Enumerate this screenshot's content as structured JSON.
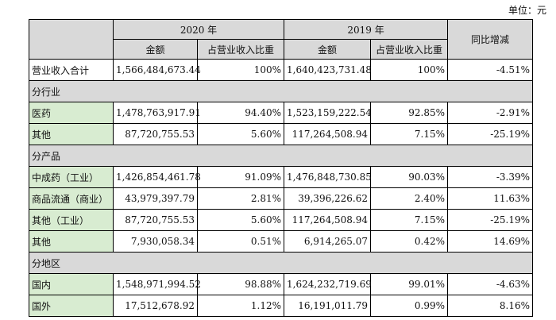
{
  "unit_label": "单位：元",
  "header": {
    "year_2020": "2020 年",
    "year_2019": "2019 年",
    "yoy": "同比增减",
    "amount": "金额",
    "share": "占营业收入比重"
  },
  "total": {
    "label": "营业收入合计",
    "amt2020": "1,566,484,673.44",
    "pct2020": "100%",
    "amt2019": "1,640,423,731.48",
    "pct2019": "100%",
    "yoy": "-4.51%"
  },
  "sections": {
    "industry": "分行业",
    "product": "分产品",
    "region": "分地区"
  },
  "industry_rows": [
    {
      "label": "医药",
      "amt2020": "1,478,763,917.91",
      "pct2020": "94.40%",
      "amt2019": "1,523,159,222.54",
      "pct2019": "92.85%",
      "yoy": "-2.91%"
    },
    {
      "label": "其他",
      "amt2020": "87,720,755.53",
      "pct2020": "5.60%",
      "amt2019": "117,264,508.94",
      "pct2019": "7.15%",
      "yoy": "-25.19%"
    }
  ],
  "product_rows": [
    {
      "label": "中成药（工业）",
      "amt2020": "1,426,854,461.78",
      "pct2020": "91.09%",
      "amt2019": "1,476,848,730.85",
      "pct2019": "90.03%",
      "yoy": "-3.39%"
    },
    {
      "label": "商品流通（商业）",
      "amt2020": "43,979,397.79",
      "pct2020": "2.81%",
      "amt2019": "39,396,226.62",
      "pct2019": "2.40%",
      "yoy": "11.63%"
    },
    {
      "label": "其他（工业）",
      "amt2020": "87,720,755.53",
      "pct2020": "5.60%",
      "amt2019": "117,264,508.94",
      "pct2019": "7.15%",
      "yoy": "-25.19%"
    },
    {
      "label": "其他",
      "amt2020": "7,930,058.34",
      "pct2020": "0.51%",
      "amt2019": "6,914,265.07",
      "pct2019": "0.42%",
      "yoy": "14.69%"
    }
  ],
  "region_rows": [
    {
      "label": "国内",
      "amt2020": "1,548,971,994.52",
      "pct2020": "98.88%",
      "amt2019": "1,624,232,719.69",
      "pct2019": "99.01%",
      "yoy": "-4.63%"
    },
    {
      "label": "国外",
      "amt2020": "17,512,678.92",
      "pct2020": "1.12%",
      "amt2019": "16,191,011.79",
      "pct2019": "0.99%",
      "yoy": "8.16%"
    }
  ],
  "colors": {
    "header_gray": "#d9d9d9",
    "label_green": "#d8ecd1"
  }
}
